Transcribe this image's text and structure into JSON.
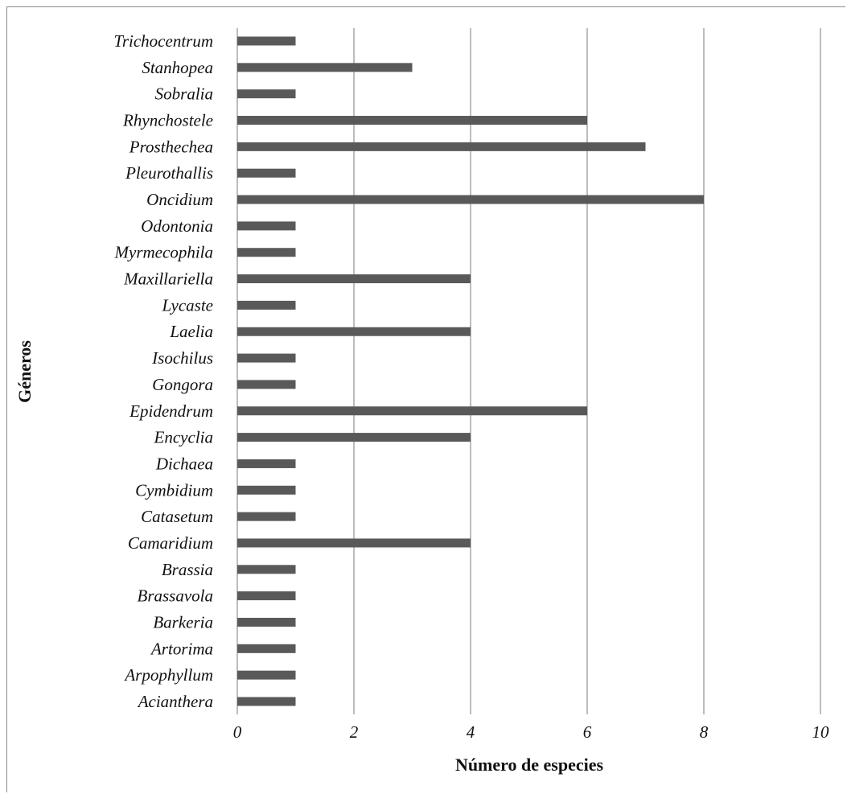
{
  "chart_data": {
    "type": "bar",
    "orientation": "horizontal",
    "categories": [
      "Acianthera",
      "Arpophyllum",
      "Artorima",
      "Barkeria",
      "Brassavola",
      "Brassia",
      "Camaridium",
      "Catasetum",
      "Cymbidium",
      "Dichaea",
      "Encyclia",
      "Epidendrum",
      "Gongora",
      "Isochilus",
      "Laelia",
      "Lycaste",
      "Maxillariella",
      "Myrmecophila",
      "Odontonia",
      "Oncidium",
      "Pleurothallis",
      "Prosthechea",
      "Rhynchostele",
      "Sobralia",
      "Stanhopea",
      "Trichocentrum"
    ],
    "values": [
      1,
      1,
      1,
      1,
      1,
      1,
      4,
      1,
      1,
      1,
      4,
      6,
      1,
      1,
      4,
      1,
      4,
      1,
      1,
      8,
      1,
      7,
      6,
      1,
      3,
      1
    ],
    "xlabel": "Número de especies",
    "ylabel": "Géneros",
    "xlim": [
      0,
      10
    ],
    "xticks": [
      "0",
      "2",
      "4",
      "6",
      "8",
      "10"
    ],
    "grid": "vertical",
    "legend": "none",
    "colors": {
      "bar": "#595959",
      "grid": "#a6a6a6",
      "text": "#111111"
    }
  }
}
